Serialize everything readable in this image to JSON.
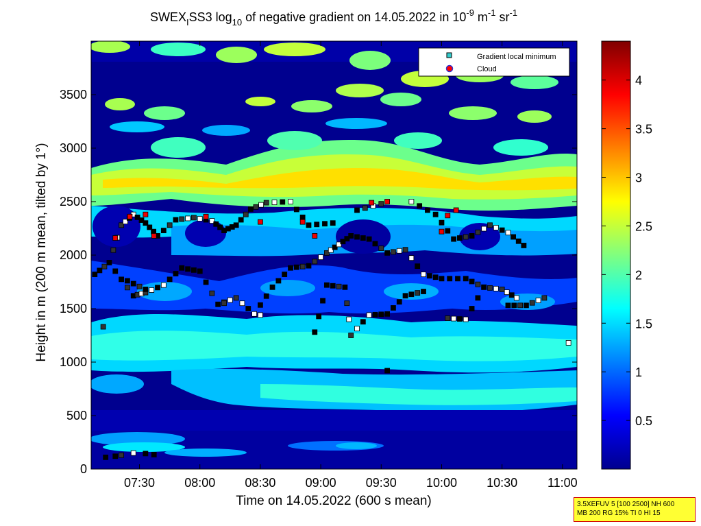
{
  "chart_data": {
    "type": "heatmap",
    "title_parts": {
      "pre": "SWEX",
      "sub_i": "I",
      "mid": "SS3 log",
      "sub_10": "10",
      "post": " of negative gradient on 14.05.2022 in 10",
      "exp1": "-9",
      "unit1": " m",
      "exp2": "-1",
      "unit2": " sr",
      "exp3": "-1"
    },
    "xlabel": "Time on 14.05.2022 (600 s mean)",
    "ylabel": "Height in m (200 m mean, tilted by 1°)",
    "x_ticks": [
      "07:30",
      "08:00",
      "08:30",
      "09:00",
      "09:30",
      "10:00",
      "10:30",
      "11:00"
    ],
    "x_tick_hours": [
      7.5,
      8.0,
      8.5,
      9.0,
      9.5,
      10.0,
      10.5,
      11.0
    ],
    "xlim_hours": [
      7.1,
      11.12
    ],
    "y_ticks": [
      "0",
      "500",
      "1000",
      "1500",
      "2000",
      "2500",
      "3000",
      "3500"
    ],
    "y_tick_values": [
      0,
      500,
      1000,
      1500,
      2000,
      2500,
      3000,
      3500
    ],
    "ylim": [
      0,
      4000
    ],
    "colorbar": {
      "ticks": [
        "0.5",
        "1",
        "1.5",
        "2",
        "2.5",
        "3",
        "3.5",
        "4"
      ],
      "tick_values": [
        0.5,
        1.0,
        1.5,
        2.0,
        2.5,
        3.0,
        3.5,
        4.0
      ],
      "range": [
        0.0,
        4.4
      ]
    },
    "legend": {
      "placement": "top-right",
      "entries": [
        {
          "label": "Gradient local minimum",
          "marker": "square",
          "fill": "#33cccc"
        },
        {
          "label": "Cloud",
          "marker": "circle",
          "fill": "#ff0000",
          "edge": "#3333cc"
        }
      ]
    },
    "gradient_minimum_bands": [
      {
        "name": "band-2400",
        "points": [
          [
            7.13,
            1820
          ],
          [
            7.25,
            1930
          ],
          [
            7.35,
            2280
          ],
          [
            7.45,
            2380
          ],
          [
            7.55,
            2300
          ],
          [
            7.65,
            2180
          ],
          [
            7.8,
            2330
          ],
          [
            7.95,
            2350
          ],
          [
            8.1,
            2320
          ],
          [
            8.2,
            2230
          ],
          [
            8.3,
            2280
          ],
          [
            8.42,
            2430
          ],
          [
            8.55,
            2490
          ],
          [
            8.75,
            2500
          ],
          [
            8.9,
            2280
          ],
          [
            9.1,
            2300
          ],
          [
            9.3,
            2420
          ],
          [
            9.5,
            2480
          ],
          [
            9.75,
            2500
          ],
          [
            9.95,
            2380
          ],
          [
            10.1,
            2150
          ],
          [
            10.25,
            2180
          ],
          [
            10.4,
            2280
          ],
          [
            10.55,
            2210
          ],
          [
            10.68,
            2090
          ]
        ]
      },
      {
        "name": "band-1800",
        "points": [
          [
            7.3,
            1850
          ],
          [
            7.45,
            1620
          ],
          [
            7.55,
            1650
          ],
          [
            7.7,
            1720
          ],
          [
            7.85,
            1880
          ],
          [
            8.0,
            1850
          ],
          [
            8.15,
            1540
          ],
          [
            8.3,
            1600
          ],
          [
            8.45,
            1450
          ],
          [
            8.6,
            1700
          ],
          [
            8.75,
            1880
          ],
          [
            8.9,
            1900
          ],
          [
            9.05,
            2020
          ],
          [
            9.15,
            2100
          ],
          [
            9.25,
            2180
          ],
          [
            9.4,
            2150
          ],
          [
            9.55,
            2020
          ],
          [
            9.7,
            2050
          ],
          [
            9.85,
            1820
          ],
          [
            10.0,
            1780
          ],
          [
            10.2,
            1780
          ],
          [
            10.35,
            1700
          ],
          [
            10.5,
            1680
          ],
          [
            10.62,
            1600
          ]
        ]
      },
      {
        "name": "band-1400",
        "points": [
          [
            7.4,
            1760
          ],
          [
            7.55,
            1680
          ],
          [
            8.2,
            1550
          ],
          [
            8.5,
            1440
          ],
          [
            8.95,
            1280
          ],
          [
            9.05,
            1720
          ],
          [
            9.2,
            1700
          ],
          [
            9.25,
            1250
          ],
          [
            9.4,
            1440
          ],
          [
            9.55,
            1450
          ],
          [
            9.7,
            1620
          ],
          [
            9.85,
            1660
          ],
          [
            10.05,
            1410
          ],
          [
            10.2,
            1400
          ],
          [
            10.35,
            1700
          ],
          [
            10.55,
            1530
          ],
          [
            10.7,
            1530
          ],
          [
            10.85,
            1600
          ],
          [
            11.05,
            1180
          ]
        ]
      },
      {
        "name": "band-low",
        "points": [
          [
            7.22,
            110
          ],
          [
            7.3,
            120
          ],
          [
            7.35,
            130
          ],
          [
            7.45,
            150
          ],
          [
            7.55,
            145
          ],
          [
            7.62,
            135
          ],
          [
            9.55,
            920
          ],
          [
            7.2,
            1330
          ]
        ]
      }
    ],
    "cloud_points": [
      [
        7.3,
        2160
      ],
      [
        7.42,
        2360
      ],
      [
        7.55,
        2380
      ],
      [
        7.62,
        2180
      ],
      [
        8.05,
        2360
      ],
      [
        8.5,
        2310
      ],
      [
        8.85,
        2310
      ],
      [
        8.95,
        2180
      ],
      [
        9.42,
        2490
      ],
      [
        9.55,
        2500
      ],
      [
        10.0,
        2220
      ],
      [
        10.05,
        2370
      ],
      [
        10.12,
        2420
      ]
    ]
  },
  "info_box": {
    "line1": "3.5XEFUV 5 [100 2500] NH 600",
    "line2": "MB 200 RG 15% TI 0 HI 15"
  }
}
